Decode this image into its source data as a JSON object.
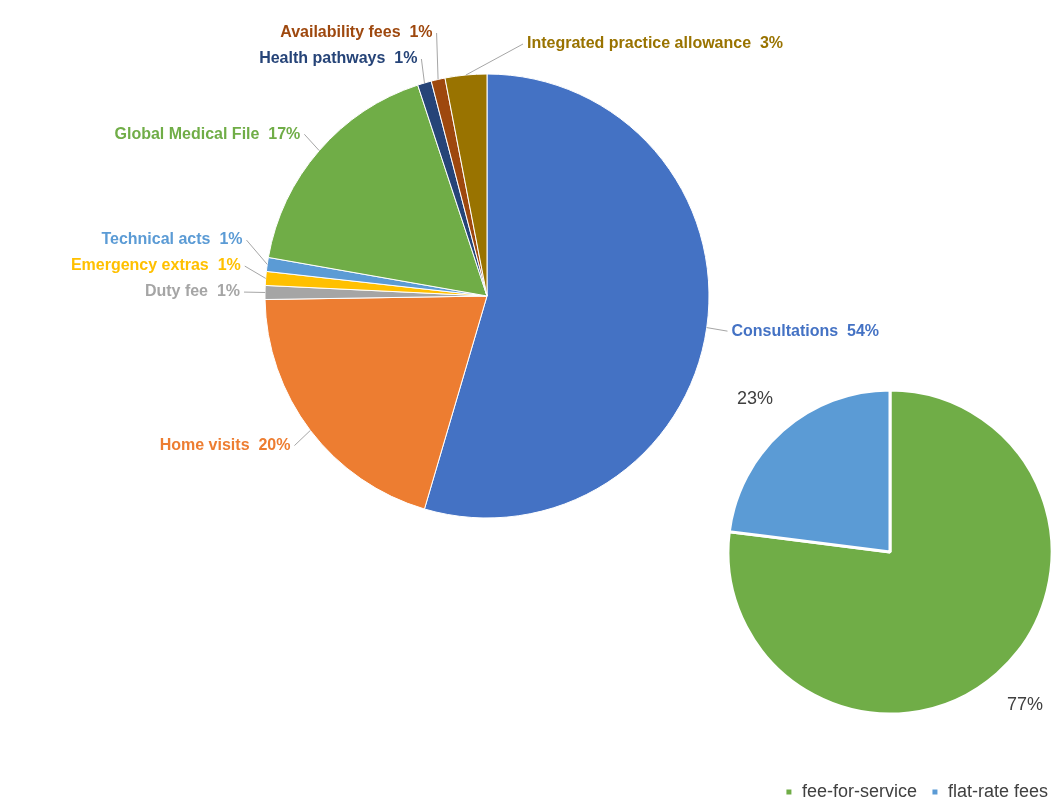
{
  "chart_data": [
    {
      "type": "pie",
      "categories": [
        "Consultations",
        "Home visits",
        "Duty fee",
        "Emergency extras",
        "Technical acts",
        "Global Medical File",
        "Health pathways",
        "Availability fees",
        "Integrated practice allowance"
      ],
      "values": [
        54,
        20,
        1,
        1,
        1,
        17,
        1,
        1,
        3
      ],
      "colors": [
        "#4472c4",
        "#ed7d31",
        "#a5a5a5",
        "#ffc000",
        "#5b9bd5",
        "#70ad47",
        "#264478",
        "#9e480e",
        "#997300"
      ],
      "value_labels": [
        "54%",
        "20%",
        "1%",
        "1%",
        "1%",
        "17%",
        "1%",
        "1%",
        "3%"
      ],
      "legend": false
    },
    {
      "type": "pie",
      "categories": [
        "fee-for-service",
        "flat-rate fees"
      ],
      "values": [
        77,
        23
      ],
      "colors": [
        "#70ad47",
        "#5b9bd5"
      ],
      "value_labels": [
        "77%",
        "23%"
      ],
      "legend": "bottom"
    }
  ]
}
